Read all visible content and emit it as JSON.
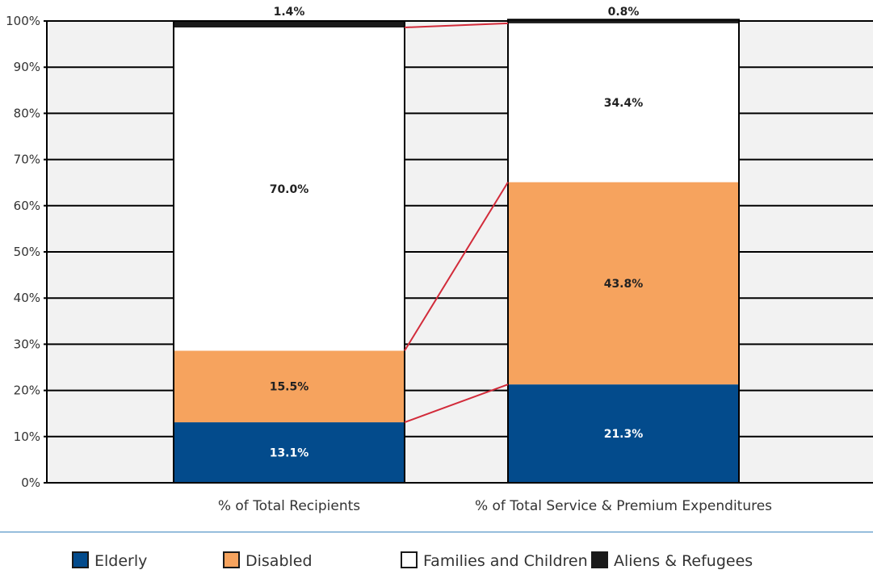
{
  "chart_data": {
    "type": "bar",
    "stacked": true,
    "categories": [
      "% of Total Recipients",
      "% of Total Service & Premium Expenditures"
    ],
    "y_ticks": [
      "0%",
      "10%",
      "20%",
      "30%",
      "40%",
      "50%",
      "60%",
      "70%",
      "80%",
      "90%",
      "100%"
    ],
    "ylim": [
      0,
      100
    ],
    "grid": true,
    "legend_position": "bottom",
    "series": [
      {
        "name": "Elderly",
        "values": [
          13.1,
          21.3
        ],
        "labels": [
          "13.1%",
          "21.3%"
        ],
        "color": "#034B8C",
        "label_color": "#ffffff"
      },
      {
        "name": "Disabled",
        "values": [
          15.5,
          43.8
        ],
        "labels": [
          "15.5%",
          "43.8%"
        ],
        "color": "#F6A35E",
        "label_color": "#222222"
      },
      {
        "name": "Families and Children",
        "values": [
          70.0,
          34.4
        ],
        "labels": [
          "70.0%",
          "34.4%"
        ],
        "color": "#ffffff",
        "label_color": "#222222"
      },
      {
        "name": "Aliens & Refugees",
        "values": [
          1.4,
          0.8
        ],
        "labels": [
          "1.4%",
          "0.8%"
        ],
        "color": "#1a1a1a",
        "label_color": "#222222"
      }
    ],
    "connector_color": "#D22B3A",
    "plot_background": "#F2F2F2",
    "separator_color": "#2E7DB8"
  }
}
